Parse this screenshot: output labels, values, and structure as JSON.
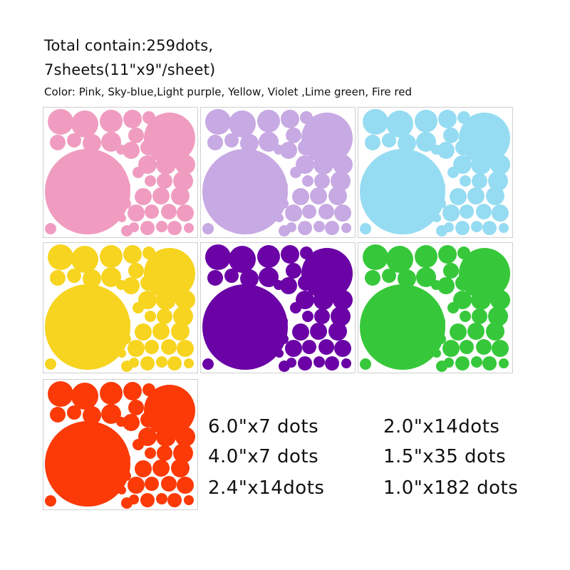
{
  "heading": {
    "total": "Total contain:259dots,",
    "sheets": "7sheets(11\"x9\"/sheet)",
    "colors": "Color: Pink, Sky-blue,Light purple, Yellow, Violet ,Lime green, Fire red"
  },
  "sheets": [
    {
      "name": "Pink",
      "color": "#f09cc0"
    },
    {
      "name": "Light purple",
      "color": "#c7a9e3"
    },
    {
      "name": "Sky-blue",
      "color": "#95dcf2"
    },
    {
      "name": "Yellow",
      "color": "#f7d41f"
    },
    {
      "name": "Violet",
      "color": "#6a02a6"
    },
    {
      "name": "Lime green",
      "color": "#36c83a"
    },
    {
      "name": "Fire red",
      "color": "#fb3a07"
    }
  ],
  "sizes": {
    "s60": "6.0\"x7 dots",
    "s40": "4.0\"x7 dots",
    "s24": "2.4\"x14dots",
    "s20": "2.0\"x14dots",
    "s15": "1.5\"x35 dots",
    "s10": "1.0\"x182 dots"
  }
}
